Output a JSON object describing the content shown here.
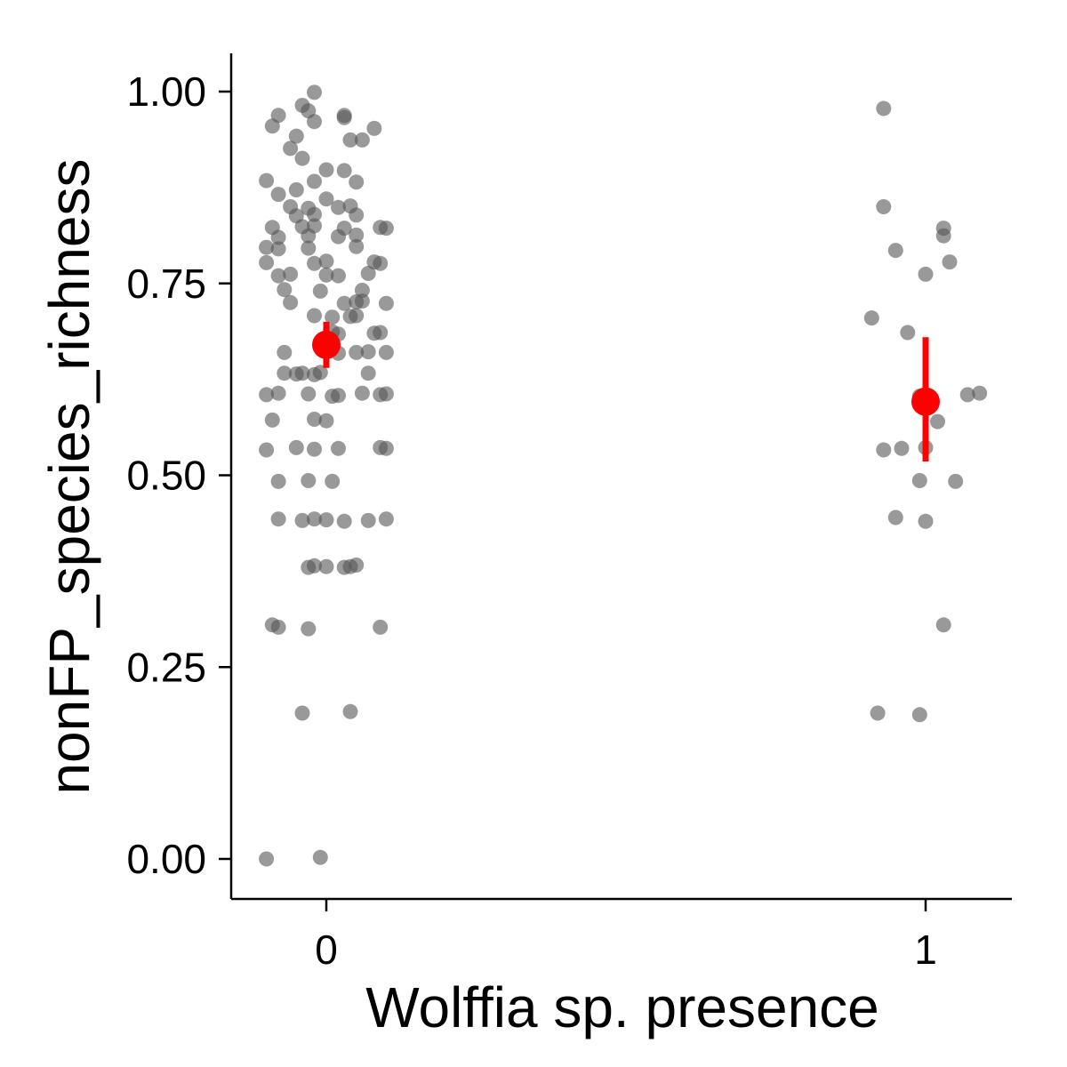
{
  "chart_data": {
    "type": "scatter",
    "title": "",
    "xlabel": "Wolffia sp. presence",
    "ylabel": "nonFP_species_richness",
    "x_categories": [
      "0",
      "1"
    ],
    "y_ticks": [
      "0.00",
      "0.25",
      "0.50",
      "0.75",
      "1.00"
    ],
    "ylim": [
      -0.05,
      1.05
    ],
    "grid": false,
    "legend": "none",
    "colors": {
      "points": "#555555",
      "summary": "#ff0000",
      "axis": "#000000"
    },
    "series": [
      {
        "group": "0",
        "points": [
          {
            "x": -0.1,
            "y": 0.0
          },
          {
            "x": -0.01,
            "y": 0.002
          },
          {
            "x": -0.04,
            "y": 0.19
          },
          {
            "x": 0.04,
            "y": 0.192
          },
          {
            "x": -0.08,
            "y": 0.302
          },
          {
            "x": -0.09,
            "y": 0.305
          },
          {
            "x": -0.03,
            "y": 0.3
          },
          {
            "x": 0.09,
            "y": 0.302
          },
          {
            "x": -0.03,
            "y": 0.38
          },
          {
            "x": -0.02,
            "y": 0.382
          },
          {
            "x": 0.0,
            "y": 0.381
          },
          {
            "x": 0.03,
            "y": 0.38
          },
          {
            "x": 0.04,
            "y": 0.381
          },
          {
            "x": 0.05,
            "y": 0.383
          },
          {
            "x": -0.08,
            "y": 0.443
          },
          {
            "x": -0.04,
            "y": 0.441
          },
          {
            "x": -0.02,
            "y": 0.443
          },
          {
            "x": 0.0,
            "y": 0.442
          },
          {
            "x": 0.03,
            "y": 0.44
          },
          {
            "x": 0.07,
            "y": 0.441
          },
          {
            "x": 0.1,
            "y": 0.443
          },
          {
            "x": -0.08,
            "y": 0.492
          },
          {
            "x": -0.03,
            "y": 0.493
          },
          {
            "x": 0.01,
            "y": 0.492
          },
          {
            "x": -0.1,
            "y": 0.533
          },
          {
            "x": -0.05,
            "y": 0.536
          },
          {
            "x": -0.02,
            "y": 0.534
          },
          {
            "x": 0.02,
            "y": 0.535
          },
          {
            "x": 0.09,
            "y": 0.536
          },
          {
            "x": 0.1,
            "y": 0.535
          },
          {
            "x": -0.09,
            "y": 0.572
          },
          {
            "x": -0.02,
            "y": 0.573
          },
          {
            "x": 0.0,
            "y": 0.571
          },
          {
            "x": -0.1,
            "y": 0.605
          },
          {
            "x": -0.08,
            "y": 0.607
          },
          {
            "x": -0.03,
            "y": 0.606
          },
          {
            "x": 0.01,
            "y": 0.603
          },
          {
            "x": 0.02,
            "y": 0.604
          },
          {
            "x": 0.06,
            "y": 0.607
          },
          {
            "x": 0.09,
            "y": 0.605
          },
          {
            "x": 0.1,
            "y": 0.606
          },
          {
            "x": -0.07,
            "y": 0.633
          },
          {
            "x": -0.05,
            "y": 0.632
          },
          {
            "x": -0.04,
            "y": 0.633
          },
          {
            "x": -0.02,
            "y": 0.631
          },
          {
            "x": -0.01,
            "y": 0.634
          },
          {
            "x": 0.07,
            "y": 0.633
          },
          {
            "x": -0.07,
            "y": 0.66
          },
          {
            "x": 0.02,
            "y": 0.659
          },
          {
            "x": 0.05,
            "y": 0.66
          },
          {
            "x": 0.07,
            "y": 0.661
          },
          {
            "x": 0.1,
            "y": 0.66
          },
          {
            "x": 0.01,
            "y": 0.687
          },
          {
            "x": 0.02,
            "y": 0.684
          },
          {
            "x": 0.08,
            "y": 0.685
          },
          {
            "x": 0.09,
            "y": 0.686
          },
          {
            "x": -0.02,
            "y": 0.708
          },
          {
            "x": 0.01,
            "y": 0.706
          },
          {
            "x": 0.04,
            "y": 0.707
          },
          {
            "x": 0.05,
            "y": 0.708
          },
          {
            "x": -0.06,
            "y": 0.725
          },
          {
            "x": 0.03,
            "y": 0.724
          },
          {
            "x": 0.05,
            "y": 0.726
          },
          {
            "x": 0.06,
            "y": 0.727
          },
          {
            "x": 0.1,
            "y": 0.724
          },
          {
            "x": -0.07,
            "y": 0.742
          },
          {
            "x": -0.01,
            "y": 0.74
          },
          {
            "x": 0.06,
            "y": 0.741
          },
          {
            "x": -0.08,
            "y": 0.76
          },
          {
            "x": -0.06,
            "y": 0.762
          },
          {
            "x": 0.0,
            "y": 0.761
          },
          {
            "x": 0.02,
            "y": 0.76
          },
          {
            "x": 0.07,
            "y": 0.763
          },
          {
            "x": -0.1,
            "y": 0.777
          },
          {
            "x": -0.02,
            "y": 0.776
          },
          {
            "x": 0.0,
            "y": 0.779
          },
          {
            "x": 0.08,
            "y": 0.778
          },
          {
            "x": 0.09,
            "y": 0.776
          },
          {
            "x": -0.1,
            "y": 0.797
          },
          {
            "x": -0.08,
            "y": 0.795
          },
          {
            "x": -0.03,
            "y": 0.796
          },
          {
            "x": 0.05,
            "y": 0.798
          },
          {
            "x": -0.08,
            "y": 0.81
          },
          {
            "x": -0.03,
            "y": 0.812
          },
          {
            "x": 0.02,
            "y": 0.811
          },
          {
            "x": 0.05,
            "y": 0.813
          },
          {
            "x": -0.09,
            "y": 0.823
          },
          {
            "x": -0.04,
            "y": 0.824
          },
          {
            "x": -0.02,
            "y": 0.825
          },
          {
            "x": 0.03,
            "y": 0.822
          },
          {
            "x": 0.09,
            "y": 0.823
          },
          {
            "x": 0.1,
            "y": 0.822
          },
          {
            "x": -0.05,
            "y": 0.838
          },
          {
            "x": -0.02,
            "y": 0.84
          },
          {
            "x": 0.05,
            "y": 0.839
          },
          {
            "x": -0.06,
            "y": 0.85
          },
          {
            "x": -0.03,
            "y": 0.848
          },
          {
            "x": 0.02,
            "y": 0.849
          },
          {
            "x": 0.04,
            "y": 0.851
          },
          {
            "x": -0.08,
            "y": 0.866
          },
          {
            "x": -0.05,
            "y": 0.872
          },
          {
            "x": 0.0,
            "y": 0.86
          },
          {
            "x": -0.1,
            "y": 0.884
          },
          {
            "x": -0.02,
            "y": 0.883
          },
          {
            "x": 0.05,
            "y": 0.882
          },
          {
            "x": 0.0,
            "y": 0.898
          },
          {
            "x": 0.03,
            "y": 0.897
          },
          {
            "x": -0.04,
            "y": 0.913
          },
          {
            "x": -0.06,
            "y": 0.926
          },
          {
            "x": -0.09,
            "y": 0.955
          },
          {
            "x": -0.05,
            "y": 0.942
          },
          {
            "x": 0.04,
            "y": 0.937
          },
          {
            "x": 0.06,
            "y": 0.937
          },
          {
            "x": 0.08,
            "y": 0.952
          },
          {
            "x": -0.08,
            "y": 0.969
          },
          {
            "x": -0.02,
            "y": 0.961
          },
          {
            "x": 0.03,
            "y": 0.969
          },
          {
            "x": 0.03,
            "y": 0.966
          },
          {
            "x": -0.04,
            "y": 0.982
          },
          {
            "x": -0.03,
            "y": 0.975
          },
          {
            "x": -0.02,
            "y": 0.999
          }
        ]
      },
      {
        "group": "1",
        "points": [
          {
            "x": -0.08,
            "y": 0.19
          },
          {
            "x": -0.01,
            "y": 0.188
          },
          {
            "x": 0.03,
            "y": 0.305
          },
          {
            "x": -0.05,
            "y": 0.445
          },
          {
            "x": 0.0,
            "y": 0.44
          },
          {
            "x": -0.01,
            "y": 0.493
          },
          {
            "x": 0.05,
            "y": 0.492
          },
          {
            "x": -0.07,
            "y": 0.533
          },
          {
            "x": -0.04,
            "y": 0.535
          },
          {
            "x": 0.0,
            "y": 0.536
          },
          {
            "x": 0.02,
            "y": 0.57
          },
          {
            "x": -0.01,
            "y": 0.603
          },
          {
            "x": 0.0,
            "y": 0.605
          },
          {
            "x": 0.07,
            "y": 0.605
          },
          {
            "x": 0.09,
            "y": 0.607
          },
          {
            "x": -0.03,
            "y": 0.686
          },
          {
            "x": -0.09,
            "y": 0.705
          },
          {
            "x": 0.0,
            "y": 0.762
          },
          {
            "x": -0.05,
            "y": 0.793
          },
          {
            "x": 0.04,
            "y": 0.778
          },
          {
            "x": 0.03,
            "y": 0.812
          },
          {
            "x": 0.03,
            "y": 0.822
          },
          {
            "x": -0.07,
            "y": 0.85
          },
          {
            "x": -0.07,
            "y": 0.978
          }
        ]
      }
    ],
    "summary": [
      {
        "group": "0",
        "mean": 0.67,
        "lower": 0.64,
        "upper": 0.7
      },
      {
        "group": "1",
        "mean": 0.596,
        "lower": 0.518,
        "upper": 0.68
      }
    ]
  }
}
